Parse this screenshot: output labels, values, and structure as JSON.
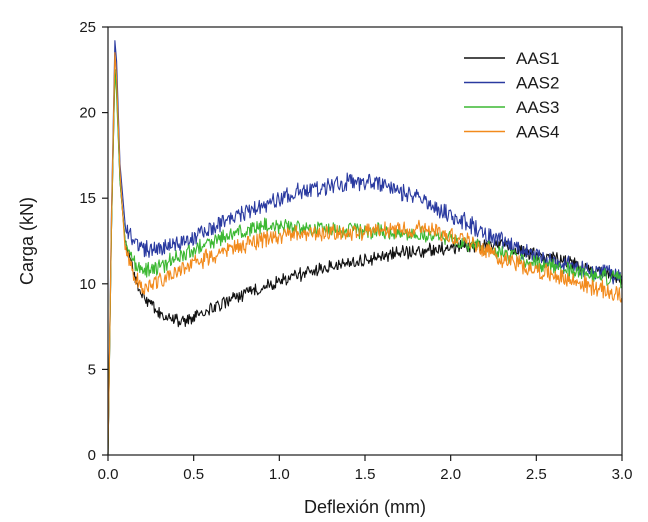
{
  "chart_data": {
    "type": "line",
    "xlabel": "Deflexión (mm)",
    "ylabel": "Carga (kN)",
    "xlim": [
      0.0,
      3.0
    ],
    "ylim": [
      0,
      25
    ],
    "xticks": [
      "0.0",
      "0.5",
      "1.0",
      "1.5",
      "2.0",
      "2.5",
      "3.0"
    ],
    "yticks": [
      "0",
      "5",
      "10",
      "15",
      "20",
      "25"
    ],
    "legend_position": "top-right",
    "grid": false,
    "series": [
      {
        "name": "AAS1",
        "color": "#111111",
        "noise": 0.35,
        "x": [
          0.0,
          0.02,
          0.04,
          0.05,
          0.07,
          0.1,
          0.15,
          0.2,
          0.3,
          0.4,
          0.5,
          0.7,
          0.9,
          1.1,
          1.3,
          1.5,
          1.7,
          1.9,
          2.1,
          2.2,
          2.3,
          2.5,
          2.7,
          2.9,
          3.0
        ],
        "y": [
          0.0,
          13.0,
          22.5,
          21.5,
          16.0,
          12.5,
          10.5,
          9.3,
          8.2,
          7.8,
          8.0,
          9.0,
          9.8,
          10.5,
          11.0,
          11.4,
          11.8,
          12.0,
          12.2,
          12.3,
          12.2,
          11.7,
          11.2,
          10.6,
          10.3
        ]
      },
      {
        "name": "AAS2",
        "color": "#2a3aa0",
        "noise": 0.45,
        "x": [
          0.0,
          0.02,
          0.04,
          0.05,
          0.07,
          0.1,
          0.15,
          0.2,
          0.3,
          0.5,
          0.7,
          0.9,
          1.1,
          1.3,
          1.45,
          1.6,
          1.8,
          2.0,
          2.2,
          2.4,
          2.6,
          2.8,
          3.0
        ],
        "y": [
          0.0,
          14.0,
          24.2,
          23.0,
          17.0,
          13.5,
          12.5,
          12.0,
          12.0,
          12.8,
          13.8,
          14.6,
          15.3,
          15.8,
          16.0,
          15.8,
          15.0,
          14.0,
          13.0,
          12.0,
          11.3,
          10.8,
          10.4
        ]
      },
      {
        "name": "AAS3",
        "color": "#3cb832",
        "noise": 0.4,
        "x": [
          0.0,
          0.02,
          0.04,
          0.05,
          0.07,
          0.1,
          0.15,
          0.2,
          0.3,
          0.5,
          0.7,
          0.9,
          1.1,
          1.3,
          1.5,
          1.7,
          1.9,
          2.1,
          2.3,
          2.5,
          2.7,
          2.9,
          3.0
        ],
        "y": [
          0.0,
          13.0,
          22.5,
          21.0,
          16.0,
          12.5,
          11.2,
          10.8,
          11.0,
          12.0,
          12.8,
          13.4,
          13.3,
          13.2,
          13.1,
          13.0,
          12.8,
          12.4,
          11.8,
          11.2,
          10.8,
          10.4,
          10.2
        ]
      },
      {
        "name": "AAS4",
        "color": "#f28a1c",
        "noise": 0.45,
        "x": [
          0.0,
          0.02,
          0.04,
          0.05,
          0.07,
          0.1,
          0.15,
          0.2,
          0.3,
          0.5,
          0.7,
          0.9,
          1.1,
          1.3,
          1.5,
          1.7,
          1.9,
          2.1,
          2.3,
          2.5,
          2.7,
          2.9,
          3.0
        ],
        "y": [
          0.0,
          13.5,
          23.5,
          22.0,
          16.5,
          12.0,
          10.5,
          9.8,
          10.2,
          11.2,
          12.0,
          12.6,
          12.9,
          13.0,
          13.0,
          13.2,
          13.2,
          12.5,
          11.5,
          10.8,
          10.2,
          9.6,
          9.3
        ]
      }
    ]
  }
}
